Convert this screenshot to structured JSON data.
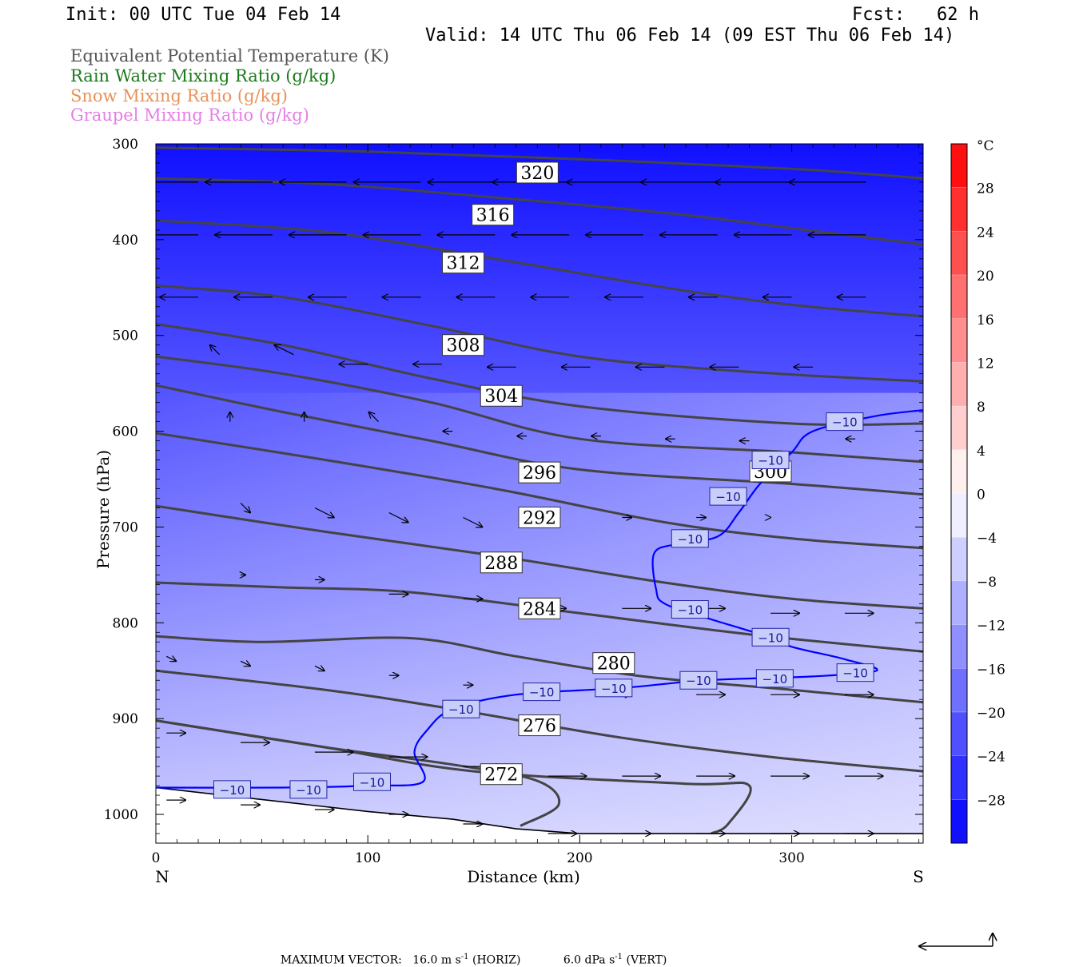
{
  "header": {
    "init": "Init: 00 UTC Tue 04 Feb 14",
    "fcst": "Fcst:   62 h",
    "valid": "Valid: 14 UTC Thu 06 Feb 14 (09 EST Thu 06 Feb 14)"
  },
  "fields": [
    {
      "label": "Equivalent Potential Temperature (K)",
      "color": "#555555"
    },
    {
      "label": "Rain Water Mixing Ratio (g/kg)",
      "color": "#1a7a1a"
    },
    {
      "label": "Snow Mixing Ratio (g/kg)",
      "color": "#e8925a"
    },
    {
      "label": "Graupel Mixing Ratio (g/kg)",
      "color": "#e57ee5"
    }
  ],
  "footer": {
    "max_vector_label": "MAXIMUM VECTOR:",
    "horiz_value": "16.0 m s",
    "horiz_exp": "-1",
    "horiz_tag": "(HORIZ)",
    "vert_value": "6.0 dPa s",
    "vert_exp": "-1",
    "vert_tag": "(VERT)"
  },
  "chart_data": {
    "type": "cross-section",
    "xlabel": "Distance (km)",
    "ylabel": "Pressure (hPa)",
    "xlim": [
      0,
      362
    ],
    "ylim": [
      1030,
      300
    ],
    "x_ticks": [
      0,
      100,
      200,
      300
    ],
    "y_ticks": [
      300,
      400,
      500,
      600,
      700,
      800,
      900,
      1000
    ],
    "left_end_label": "N",
    "right_end_label": "S",
    "colorbar": {
      "unit": "°C",
      "labels": [
        28,
        24,
        20,
        16,
        12,
        8,
        4,
        0,
        -4,
        -8,
        -12,
        -16,
        -20,
        -24,
        -28
      ],
      "min": -32,
      "max": 32,
      "step": 4,
      "warm_color": "#ff0000",
      "cold_color": "#0000ff"
    },
    "temperature_fill_levels": [
      -30,
      -26,
      -22,
      -18,
      -14,
      -10,
      -6
    ],
    "theta_e_contours": [
      {
        "label": "320",
        "label_at": [
          180,
          330
        ],
        "points": [
          [
            0,
            304
          ],
          [
            100,
            308
          ],
          [
            200,
            316
          ],
          [
            300,
            326
          ],
          [
            362,
            336
          ]
        ]
      },
      {
        "label": "316",
        "label_at": [
          159,
          374
        ],
        "points": [
          [
            0,
            336
          ],
          [
            80,
            342
          ],
          [
            160,
            356
          ],
          [
            240,
            372
          ],
          [
            300,
            388
          ],
          [
            362,
            405
          ]
        ]
      },
      {
        "label": "312",
        "label_at": [
          145,
          424
        ],
        "points": [
          [
            0,
            380
          ],
          [
            80,
            392
          ],
          [
            160,
            420
          ],
          [
            240,
            450
          ],
          [
            300,
            468
          ],
          [
            362,
            480
          ]
        ]
      },
      {
        "label": "308",
        "label_at": [
          145,
          510
        ],
        "points": [
          [
            0,
            448
          ],
          [
            60,
            460
          ],
          [
            130,
            490
          ],
          [
            200,
            522
          ],
          [
            280,
            538
          ],
          [
            362,
            548
          ]
        ]
      },
      {
        "label": "304",
        "label_at": [
          163,
          563
        ],
        "points": [
          [
            0,
            488
          ],
          [
            60,
            510
          ],
          [
            130,
            545
          ],
          [
            200,
            574
          ],
          [
            300,
            592
          ],
          [
            362,
            592
          ]
        ]
      },
      {
        "label": "300",
        "label_at": [
          290,
          642
        ],
        "points": [
          [
            0,
            522
          ],
          [
            60,
            540
          ],
          [
            130,
            570
          ],
          [
            200,
            608
          ],
          [
            300,
            622
          ],
          [
            362,
            632
          ]
        ]
      },
      {
        "label": "296",
        "label_at": [
          181,
          643
        ],
        "points": [
          [
            0,
            552
          ],
          [
            60,
            580
          ],
          [
            130,
            610
          ],
          [
            200,
            640
          ],
          [
            300,
            655
          ],
          [
            362,
            666
          ]
        ]
      },
      {
        "label": "292",
        "label_at": [
          181,
          690
        ],
        "points": [
          [
            0,
            602
          ],
          [
            80,
            630
          ],
          [
            160,
            660
          ],
          [
            240,
            695
          ],
          [
            300,
            712
          ],
          [
            362,
            722
          ]
        ]
      },
      {
        "label": "288",
        "label_at": [
          163,
          737
        ],
        "points": [
          [
            0,
            678
          ],
          [
            80,
            705
          ],
          [
            160,
            730
          ],
          [
            240,
            758
          ],
          [
            300,
            775
          ],
          [
            362,
            785
          ]
        ]
      },
      {
        "label": "284",
        "label_at": [
          181,
          785
        ],
        "points": [
          [
            0,
            758
          ],
          [
            60,
            763
          ],
          [
            120,
            768
          ],
          [
            200,
            790
          ],
          [
            280,
            812
          ],
          [
            362,
            830
          ]
        ]
      },
      {
        "label": "280",
        "label_at": [
          216,
          842
        ],
        "points": [
          [
            0,
            814
          ],
          [
            50,
            820
          ],
          [
            120,
            816
          ],
          [
            170,
            835
          ],
          [
            230,
            856
          ],
          [
            300,
            870
          ],
          [
            362,
            883
          ]
        ]
      },
      {
        "label": "276",
        "label_at": [
          181,
          907
        ],
        "points": [
          [
            0,
            850
          ],
          [
            80,
            870
          ],
          [
            140,
            890
          ],
          [
            220,
            920
          ],
          [
            290,
            940
          ],
          [
            362,
            955
          ]
        ]
      },
      {
        "label": "272",
        "label_at": [
          163,
          958
        ],
        "points": [
          [
            0,
            902
          ],
          [
            80,
            930
          ],
          [
            140,
            948
          ],
          [
            180,
            965
          ],
          [
            190,
            990
          ],
          [
            172,
            1012
          ]
        ]
      }
    ],
    "theta_e_extra_contours": [
      {
        "points": [
          [
            0,
            902
          ],
          [
            80,
            930
          ],
          [
            150,
            955
          ],
          [
            250,
            968
          ],
          [
            280,
            970
          ],
          [
            270,
            1010
          ],
          [
            262,
            1020
          ]
        ]
      }
    ],
    "isotherm_minus10": {
      "label": "−10",
      "points": [
        [
          0,
          972
        ],
        [
          60,
          972
        ],
        [
          100,
          970
        ],
        [
          126,
          966
        ],
        [
          122,
          935
        ],
        [
          128,
          912
        ],
        [
          140,
          890
        ],
        [
          170,
          875
        ],
        [
          220,
          868
        ],
        [
          260,
          860
        ],
        [
          310,
          856
        ],
        [
          340,
          850
        ],
        [
          325,
          838
        ],
        [
          300,
          825
        ],
        [
          285,
          812
        ],
        [
          260,
          795
        ],
        [
          240,
          780
        ],
        [
          236,
          765
        ],
        [
          235,
          728
        ],
        [
          245,
          718
        ],
        [
          265,
          710
        ],
        [
          275,
          685
        ],
        [
          285,
          655
        ],
        [
          300,
          622
        ],
        [
          310,
          600
        ],
        [
          340,
          584
        ],
        [
          362,
          578
        ]
      ],
      "labels_at": [
        [
          36,
          974
        ],
        [
          72,
          974
        ],
        [
          102,
          966
        ],
        [
          144,
          890
        ],
        [
          182,
          872
        ],
        [
          216,
          868
        ],
        [
          256,
          860
        ],
        [
          292,
          858
        ],
        [
          330,
          852
        ],
        [
          290,
          815
        ],
        [
          252,
          786
        ],
        [
          252,
          712
        ],
        [
          270,
          668
        ],
        [
          290,
          630
        ],
        [
          325,
          590
        ]
      ]
    },
    "wind_vectors": [
      {
        "x": 20,
        "p": 340,
        "u": -7,
        "w": 0
      },
      {
        "x": 55,
        "p": 340,
        "u": -7,
        "w": 0
      },
      {
        "x": 90,
        "p": 340,
        "u": -7,
        "w": 0
      },
      {
        "x": 125,
        "p": 340,
        "u": -7,
        "w": 0
      },
      {
        "x": 160,
        "p": 340,
        "u": -7,
        "w": 0
      },
      {
        "x": 195,
        "p": 340,
        "u": -8,
        "w": 0
      },
      {
        "x": 230,
        "p": 340,
        "u": -8,
        "w": 0
      },
      {
        "x": 265,
        "p": 340,
        "u": -8,
        "w": 0
      },
      {
        "x": 300,
        "p": 340,
        "u": -8,
        "w": 0
      },
      {
        "x": 335,
        "p": 340,
        "u": -8,
        "w": 0
      },
      {
        "x": 20,
        "p": 395,
        "u": -6,
        "w": 0
      },
      {
        "x": 55,
        "p": 395,
        "u": -6,
        "w": 0
      },
      {
        "x": 90,
        "p": 395,
        "u": -6,
        "w": 0
      },
      {
        "x": 125,
        "p": 395,
        "u": -6,
        "w": 0
      },
      {
        "x": 160,
        "p": 395,
        "u": -6,
        "w": 0
      },
      {
        "x": 195,
        "p": 395,
        "u": -6,
        "w": 0
      },
      {
        "x": 230,
        "p": 395,
        "u": -6,
        "w": 0
      },
      {
        "x": 265,
        "p": 395,
        "u": -6,
        "w": 0
      },
      {
        "x": 300,
        "p": 395,
        "u": -6,
        "w": 0
      },
      {
        "x": 335,
        "p": 395,
        "u": -6,
        "w": 0
      },
      {
        "x": 20,
        "p": 460,
        "u": -4,
        "w": 0
      },
      {
        "x": 55,
        "p": 460,
        "u": -4,
        "w": 0
      },
      {
        "x": 90,
        "p": 460,
        "u": -4,
        "w": 0
      },
      {
        "x": 125,
        "p": 460,
        "u": -4,
        "w": 0
      },
      {
        "x": 160,
        "p": 460,
        "u": -4,
        "w": 0
      },
      {
        "x": 195,
        "p": 460,
        "u": -4,
        "w": 0
      },
      {
        "x": 230,
        "p": 460,
        "u": -4,
        "w": 0
      },
      {
        "x": 265,
        "p": 460,
        "u": -3,
        "w": 0
      },
      {
        "x": 300,
        "p": 460,
        "u": -3,
        "w": 0
      },
      {
        "x": 335,
        "p": 460,
        "u": -3,
        "w": 0
      },
      {
        "x": 30,
        "p": 520,
        "u": -1,
        "w": 1
      },
      {
        "x": 65,
        "p": 520,
        "u": -2,
        "w": 1
      },
      {
        "x": 100,
        "p": 530,
        "u": -3,
        "w": 0
      },
      {
        "x": 135,
        "p": 530,
        "u": -3,
        "w": 0
      },
      {
        "x": 170,
        "p": 533,
        "u": -3,
        "w": 0
      },
      {
        "x": 205,
        "p": 533,
        "u": -3,
        "w": 0
      },
      {
        "x": 240,
        "p": 533,
        "u": -3,
        "w": 0
      },
      {
        "x": 275,
        "p": 533,
        "u": -3,
        "w": 0
      },
      {
        "x": 310,
        "p": 533,
        "u": -2,
        "w": 0
      },
      {
        "x": 35,
        "p": 590,
        "u": 0,
        "w": 1
      },
      {
        "x": 70,
        "p": 590,
        "u": 0,
        "w": 1
      },
      {
        "x": 105,
        "p": 590,
        "u": -1,
        "w": 1
      },
      {
        "x": 140,
        "p": 600,
        "u": -1,
        "w": 0
      },
      {
        "x": 175,
        "p": 605,
        "u": -1,
        "w": 0
      },
      {
        "x": 210,
        "p": 605,
        "u": -1,
        "w": 0
      },
      {
        "x": 245,
        "p": 608,
        "u": -1,
        "w": 0
      },
      {
        "x": 280,
        "p": 610,
        "u": -1,
        "w": 0
      },
      {
        "x": 330,
        "p": 608,
        "u": -1,
        "w": 0
      },
      {
        "x": 40,
        "p": 675,
        "u": 1,
        "w": -1
      },
      {
        "x": 75,
        "p": 680,
        "u": 2,
        "w": -1
      },
      {
        "x": 110,
        "p": 685,
        "u": 2,
        "w": -1
      },
      {
        "x": 145,
        "p": 690,
        "u": 2,
        "w": -1
      },
      {
        "x": 180,
        "p": 690,
        "u": 2,
        "w": 0
      },
      {
        "x": 220,
        "p": 690,
        "u": 1,
        "w": 0
      },
      {
        "x": 255,
        "p": 690,
        "u": 1,
        "w": 0
      },
      {
        "x": 290,
        "p": 690,
        "u": 0,
        "w": 0
      },
      {
        "x": 40,
        "p": 750,
        "u": 0.5,
        "w": 0
      },
      {
        "x": 75,
        "p": 755,
        "u": 1,
        "w": 0
      },
      {
        "x": 110,
        "p": 770,
        "u": 2,
        "w": 0
      },
      {
        "x": 145,
        "p": 775,
        "u": 2,
        "w": 0
      },
      {
        "x": 180,
        "p": 785,
        "u": 3,
        "w": 0
      },
      {
        "x": 220,
        "p": 785,
        "u": 3,
        "w": 0
      },
      {
        "x": 255,
        "p": 785,
        "u": 3,
        "w": 0
      },
      {
        "x": 290,
        "p": 790,
        "u": 3,
        "w": 0
      },
      {
        "x": 325,
        "p": 790,
        "u": 3,
        "w": 0
      },
      {
        "x": 5,
        "p": 835,
        "u": 1,
        "w": -0.5
      },
      {
        "x": 40,
        "p": 840,
        "u": 1,
        "w": -0.5
      },
      {
        "x": 75,
        "p": 845,
        "u": 1,
        "w": -0.5
      },
      {
        "x": 110,
        "p": 855,
        "u": 1,
        "w": 0
      },
      {
        "x": 145,
        "p": 865,
        "u": 1,
        "w": 0
      },
      {
        "x": 180,
        "p": 875,
        "u": 2,
        "w": 0
      },
      {
        "x": 215,
        "p": 875,
        "u": 2,
        "w": 0
      },
      {
        "x": 255,
        "p": 875,
        "u": 3,
        "w": 0
      },
      {
        "x": 290,
        "p": 875,
        "u": 3,
        "w": 0
      },
      {
        "x": 325,
        "p": 875,
        "u": 3,
        "w": 0
      },
      {
        "x": 5,
        "p": 915,
        "u": 2,
        "w": 0
      },
      {
        "x": 40,
        "p": 925,
        "u": 3,
        "w": 0
      },
      {
        "x": 75,
        "p": 935,
        "u": 4,
        "w": 0
      },
      {
        "x": 110,
        "p": 940,
        "u": 4,
        "w": 0
      },
      {
        "x": 145,
        "p": 950,
        "u": 4,
        "w": 0
      },
      {
        "x": 185,
        "p": 960,
        "u": 4,
        "w": 0
      },
      {
        "x": 220,
        "p": 960,
        "u": 4,
        "w": 0
      },
      {
        "x": 255,
        "p": 960,
        "u": 4,
        "w": 0
      },
      {
        "x": 290,
        "p": 960,
        "u": 4,
        "w": 0
      },
      {
        "x": 325,
        "p": 960,
        "u": 4,
        "w": 0
      },
      {
        "x": 5,
        "p": 985,
        "u": 2,
        "w": 0
      },
      {
        "x": 40,
        "p": 990,
        "u": 2,
        "w": 0
      },
      {
        "x": 75,
        "p": 995,
        "u": 2,
        "w": 0
      },
      {
        "x": 110,
        "p": 1000,
        "u": 2,
        "w": 0
      },
      {
        "x": 145,
        "p": 1010,
        "u": 2,
        "w": 0
      },
      {
        "x": 185,
        "p": 1020,
        "u": 3,
        "w": 0
      },
      {
        "x": 220,
        "p": 1020,
        "u": 3,
        "w": 0
      },
      {
        "x": 255,
        "p": 1020,
        "u": 3,
        "w": 0
      },
      {
        "x": 290,
        "p": 1020,
        "u": 3,
        "w": 0
      },
      {
        "x": 325,
        "p": 1020,
        "u": 3,
        "w": 0
      }
    ],
    "terrain_surface": [
      [
        0,
        972
      ],
      [
        100,
        997
      ],
      [
        140,
        1005
      ],
      [
        170,
        1015
      ],
      [
        200,
        1020
      ],
      [
        362,
        1020
      ]
    ]
  }
}
